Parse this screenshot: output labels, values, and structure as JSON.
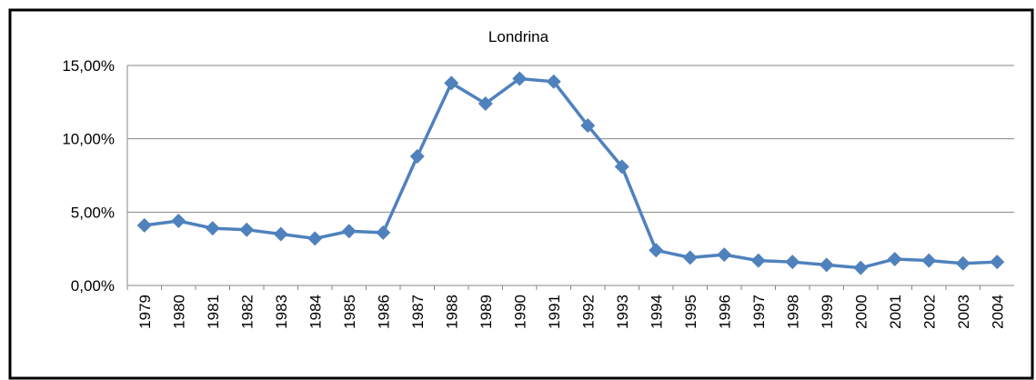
{
  "chart_data": {
    "type": "line",
    "title": "Londrina",
    "categories": [
      "1979",
      "1980",
      "1981",
      "1982",
      "1983",
      "1984",
      "1985",
      "1986",
      "1987",
      "1988",
      "1989",
      "1990",
      "1991",
      "1992",
      "1993",
      "1994",
      "1995",
      "1996",
      "1997",
      "1998",
      "1999",
      "2000",
      "2001",
      "2002",
      "2003",
      "2004"
    ],
    "series": [
      {
        "name": "Londrina",
        "color": "#4f81bd",
        "values": [
          4.1,
          4.4,
          3.9,
          3.8,
          3.5,
          3.2,
          3.7,
          3.6,
          8.8,
          13.8,
          12.4,
          14.1,
          13.9,
          10.9,
          8.1,
          2.4,
          1.9,
          2.1,
          1.7,
          1.6,
          1.4,
          1.2,
          1.8,
          1.7,
          1.5,
          1.6
        ]
      }
    ],
    "ylim": [
      0,
      15
    ],
    "yticks": [
      {
        "value": 0,
        "label": "0,00%"
      },
      {
        "value": 5,
        "label": "5,00%"
      },
      {
        "value": 10,
        "label": "10,00%"
      },
      {
        "value": 15,
        "label": "15,00%"
      }
    ],
    "grid": true
  }
}
